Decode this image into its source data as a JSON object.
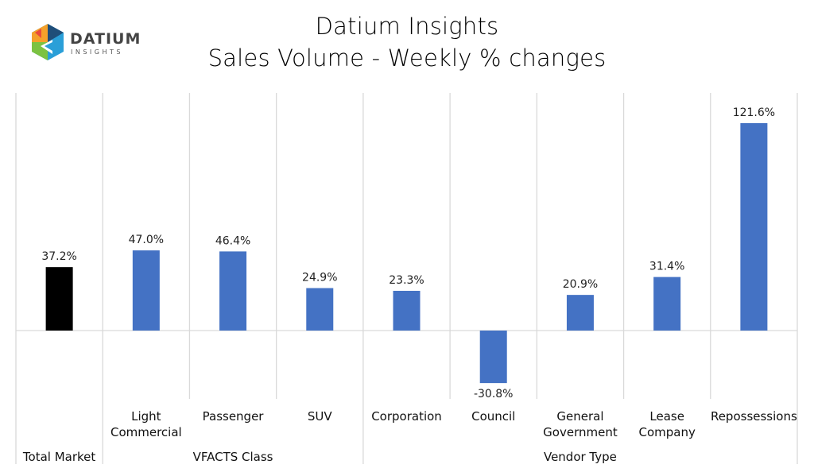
{
  "logo": {
    "name": "DATIUM",
    "tagline": "INSIGHTS"
  },
  "chart_data": {
    "type": "bar",
    "title": "Datium Insights",
    "subtitle": "Sales Volume - Weekly % changes",
    "categories": [
      "Total Market",
      "Light Commercial",
      "Passenger",
      "SUV",
      "Corporation",
      "Council",
      "General Government",
      "Lease Company",
      "Repossessions"
    ],
    "category_lines": [
      [
        "Total Market"
      ],
      [
        "Light",
        "Commercial"
      ],
      [
        "Passenger"
      ],
      [
        "SUV"
      ],
      [
        "Corporation"
      ],
      [
        "Council"
      ],
      [
        "General",
        "Government"
      ],
      [
        "Lease",
        "Company"
      ],
      [
        "Repossessions"
      ]
    ],
    "groups": [
      {
        "label": "",
        "count": 1
      },
      {
        "label": "VFACTS Class",
        "count": 3
      },
      {
        "label": "Vendor Type",
        "count": 5
      }
    ],
    "values": [
      37.2,
      47.0,
      46.4,
      24.9,
      23.3,
      -30.8,
      20.9,
      31.4,
      121.6
    ],
    "data_labels": [
      "37.2%",
      "47.0%",
      "46.4%",
      "24.9%",
      "23.3%",
      "-30.8%",
      "20.9%",
      "31.4%",
      "121.6%"
    ],
    "colors": [
      "#000000",
      "#4472c4",
      "#4472c4",
      "#4472c4",
      "#4472c4",
      "#4472c4",
      "#4472c4",
      "#4472c4",
      "#4472c4"
    ],
    "grid": false,
    "legend": "none"
  }
}
